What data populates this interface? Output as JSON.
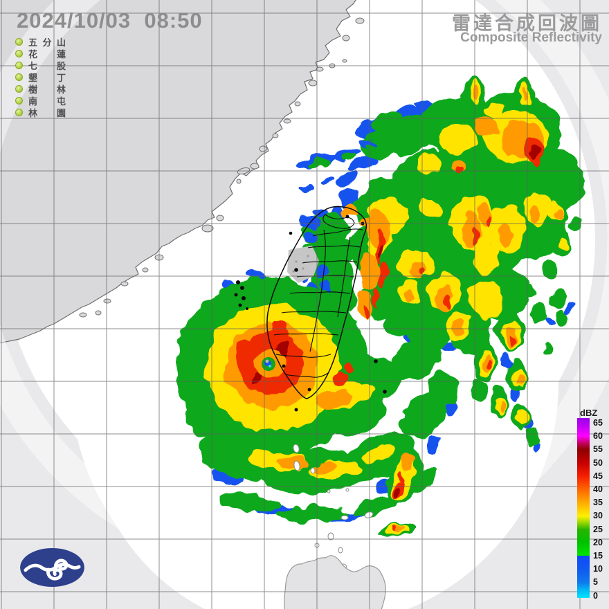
{
  "header": {
    "timestamp": "2024/10/03  08:50",
    "title_zh": "雷達合成回波圖",
    "title_en": "Composite Reflectivity"
  },
  "stations": {
    "status_color": "#b3d246",
    "items": [
      {
        "name": "五分山"
      },
      {
        "name": "花蓮"
      },
      {
        "name": "七股"
      },
      {
        "name": "墾丁"
      },
      {
        "name": "樹林"
      },
      {
        "name": "南屯"
      },
      {
        "name": "林園"
      }
    ]
  },
  "colorbar": {
    "unit": "dBZ",
    "ticks": [
      65,
      60,
      55,
      50,
      45,
      40,
      35,
      30,
      25,
      20,
      15,
      10,
      5,
      0
    ],
    "gradient": [
      {
        "pct": 0,
        "color": "#9c00e8"
      },
      {
        "pct": 3,
        "color": "#b000f2"
      },
      {
        "pct": 10,
        "color": "#ff00ff"
      },
      {
        "pct": 14,
        "color": "#c4005f"
      },
      {
        "pct": 17.5,
        "color": "#8f0000"
      },
      {
        "pct": 25,
        "color": "#c80000"
      },
      {
        "pct": 32,
        "color": "#f51d00"
      },
      {
        "pct": 39.5,
        "color": "#ff6400"
      },
      {
        "pct": 47,
        "color": "#ffaa00"
      },
      {
        "pct": 54.5,
        "color": "#fff000"
      },
      {
        "pct": 58,
        "color": "#9ed800"
      },
      {
        "pct": 62,
        "color": "#28b400"
      },
      {
        "pct": 69,
        "color": "#00c000"
      },
      {
        "pct": 76.5,
        "color": "#00e400"
      },
      {
        "pct": 76.6,
        "color": "#1346fa"
      },
      {
        "pct": 84,
        "color": "#0f5af0"
      },
      {
        "pct": 91.5,
        "color": "#0e7aec"
      },
      {
        "pct": 95.5,
        "color": "#00b8f5"
      },
      {
        "pct": 100,
        "color": "#00e2ff"
      }
    ]
  },
  "colors": {
    "out_of_range_gray": "#e9e9ec",
    "china_land_gray": "#d9d9dc",
    "sea_white": "#ffffff",
    "grid_line": "#5f5f5f",
    "boundary_black": "#0a0a0a",
    "no_data_gray": "#c6c6c6",
    "logo_navy": "#2e3f8c"
  }
}
